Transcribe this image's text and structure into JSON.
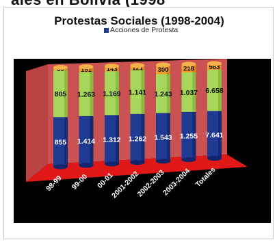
{
  "top_strip_text": "ales en Bolivia (1998",
  "chart_data": {
    "type": "bar",
    "title": "Protestas Sociales (1998-2004)",
    "legend": [
      "Acciones de Protesta"
    ],
    "categories": [
      "98-99",
      "99-00",
      "00-01",
      "2001-2002",
      "2002-2003",
      "2003-2004",
      "Totales"
    ],
    "series": [
      {
        "name": "Acciones de Protesta",
        "color": "#1f3a93",
        "labels": [
          "855",
          "1.414",
          "1.312",
          "1.262",
          "1.543",
          "1.255",
          "7.641"
        ],
        "values": [
          855,
          1414,
          1312,
          1262,
          1543,
          1255,
          7641
        ]
      },
      {
        "name": "",
        "color": "#a6d65a",
        "labels": [
          "805",
          "1.263",
          "1.169",
          "1.141",
          "1.243",
          "1.037",
          "6.658"
        ],
        "values": [
          805,
          1263,
          1169,
          1141,
          1243,
          1037,
          6658
        ]
      },
      {
        "name": "",
        "color": "#f0a030",
        "labels": [
          "50",
          "151",
          "143",
          "121",
          "300",
          "218",
          "983"
        ],
        "values": [
          50,
          151,
          143,
          121,
          300,
          218,
          983
        ]
      }
    ],
    "stacked": true,
    "percent_stacked": true,
    "three_d": true,
    "colors": {
      "plot_background": "#000000",
      "walls": "#d04a4a",
      "floor": "#e01818"
    }
  }
}
